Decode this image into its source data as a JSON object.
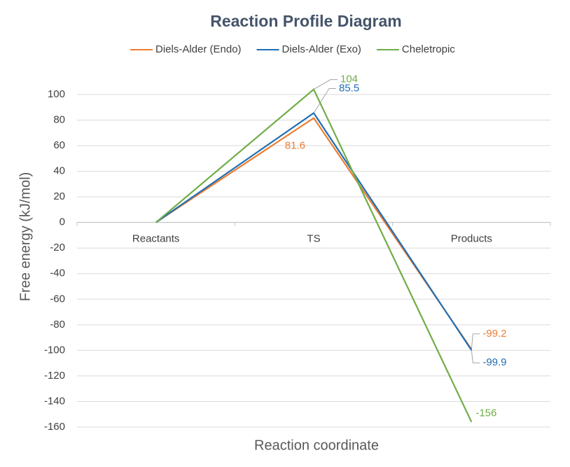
{
  "chart_data": {
    "type": "line",
    "title": "Reaction Profile Diagram",
    "x_label": "Reaction coordinate",
    "y_label": "Free energy (kJ/mol)",
    "categories": [
      "Reactants",
      "TS",
      "Products"
    ],
    "series": [
      {
        "name": "Diels-Alder (Endo)",
        "color": "#ed7d31",
        "values": [
          0,
          81.6,
          -99.2
        ]
      },
      {
        "name": "Diels-Alder (Exo)",
        "color": "#1f6fb5",
        "values": [
          0,
          85.5,
          -99.9
        ]
      },
      {
        "name": "Cheletropic",
        "color": "#70ad47",
        "values": [
          0,
          104,
          -156
        ]
      }
    ],
    "ylim": [
      -160,
      110
    ],
    "yticks": [
      -160,
      -140,
      -120,
      -100,
      -80,
      -60,
      -40,
      -20,
      0,
      20,
      40,
      60,
      80,
      100
    ],
    "grid": true,
    "legend": "top"
  }
}
